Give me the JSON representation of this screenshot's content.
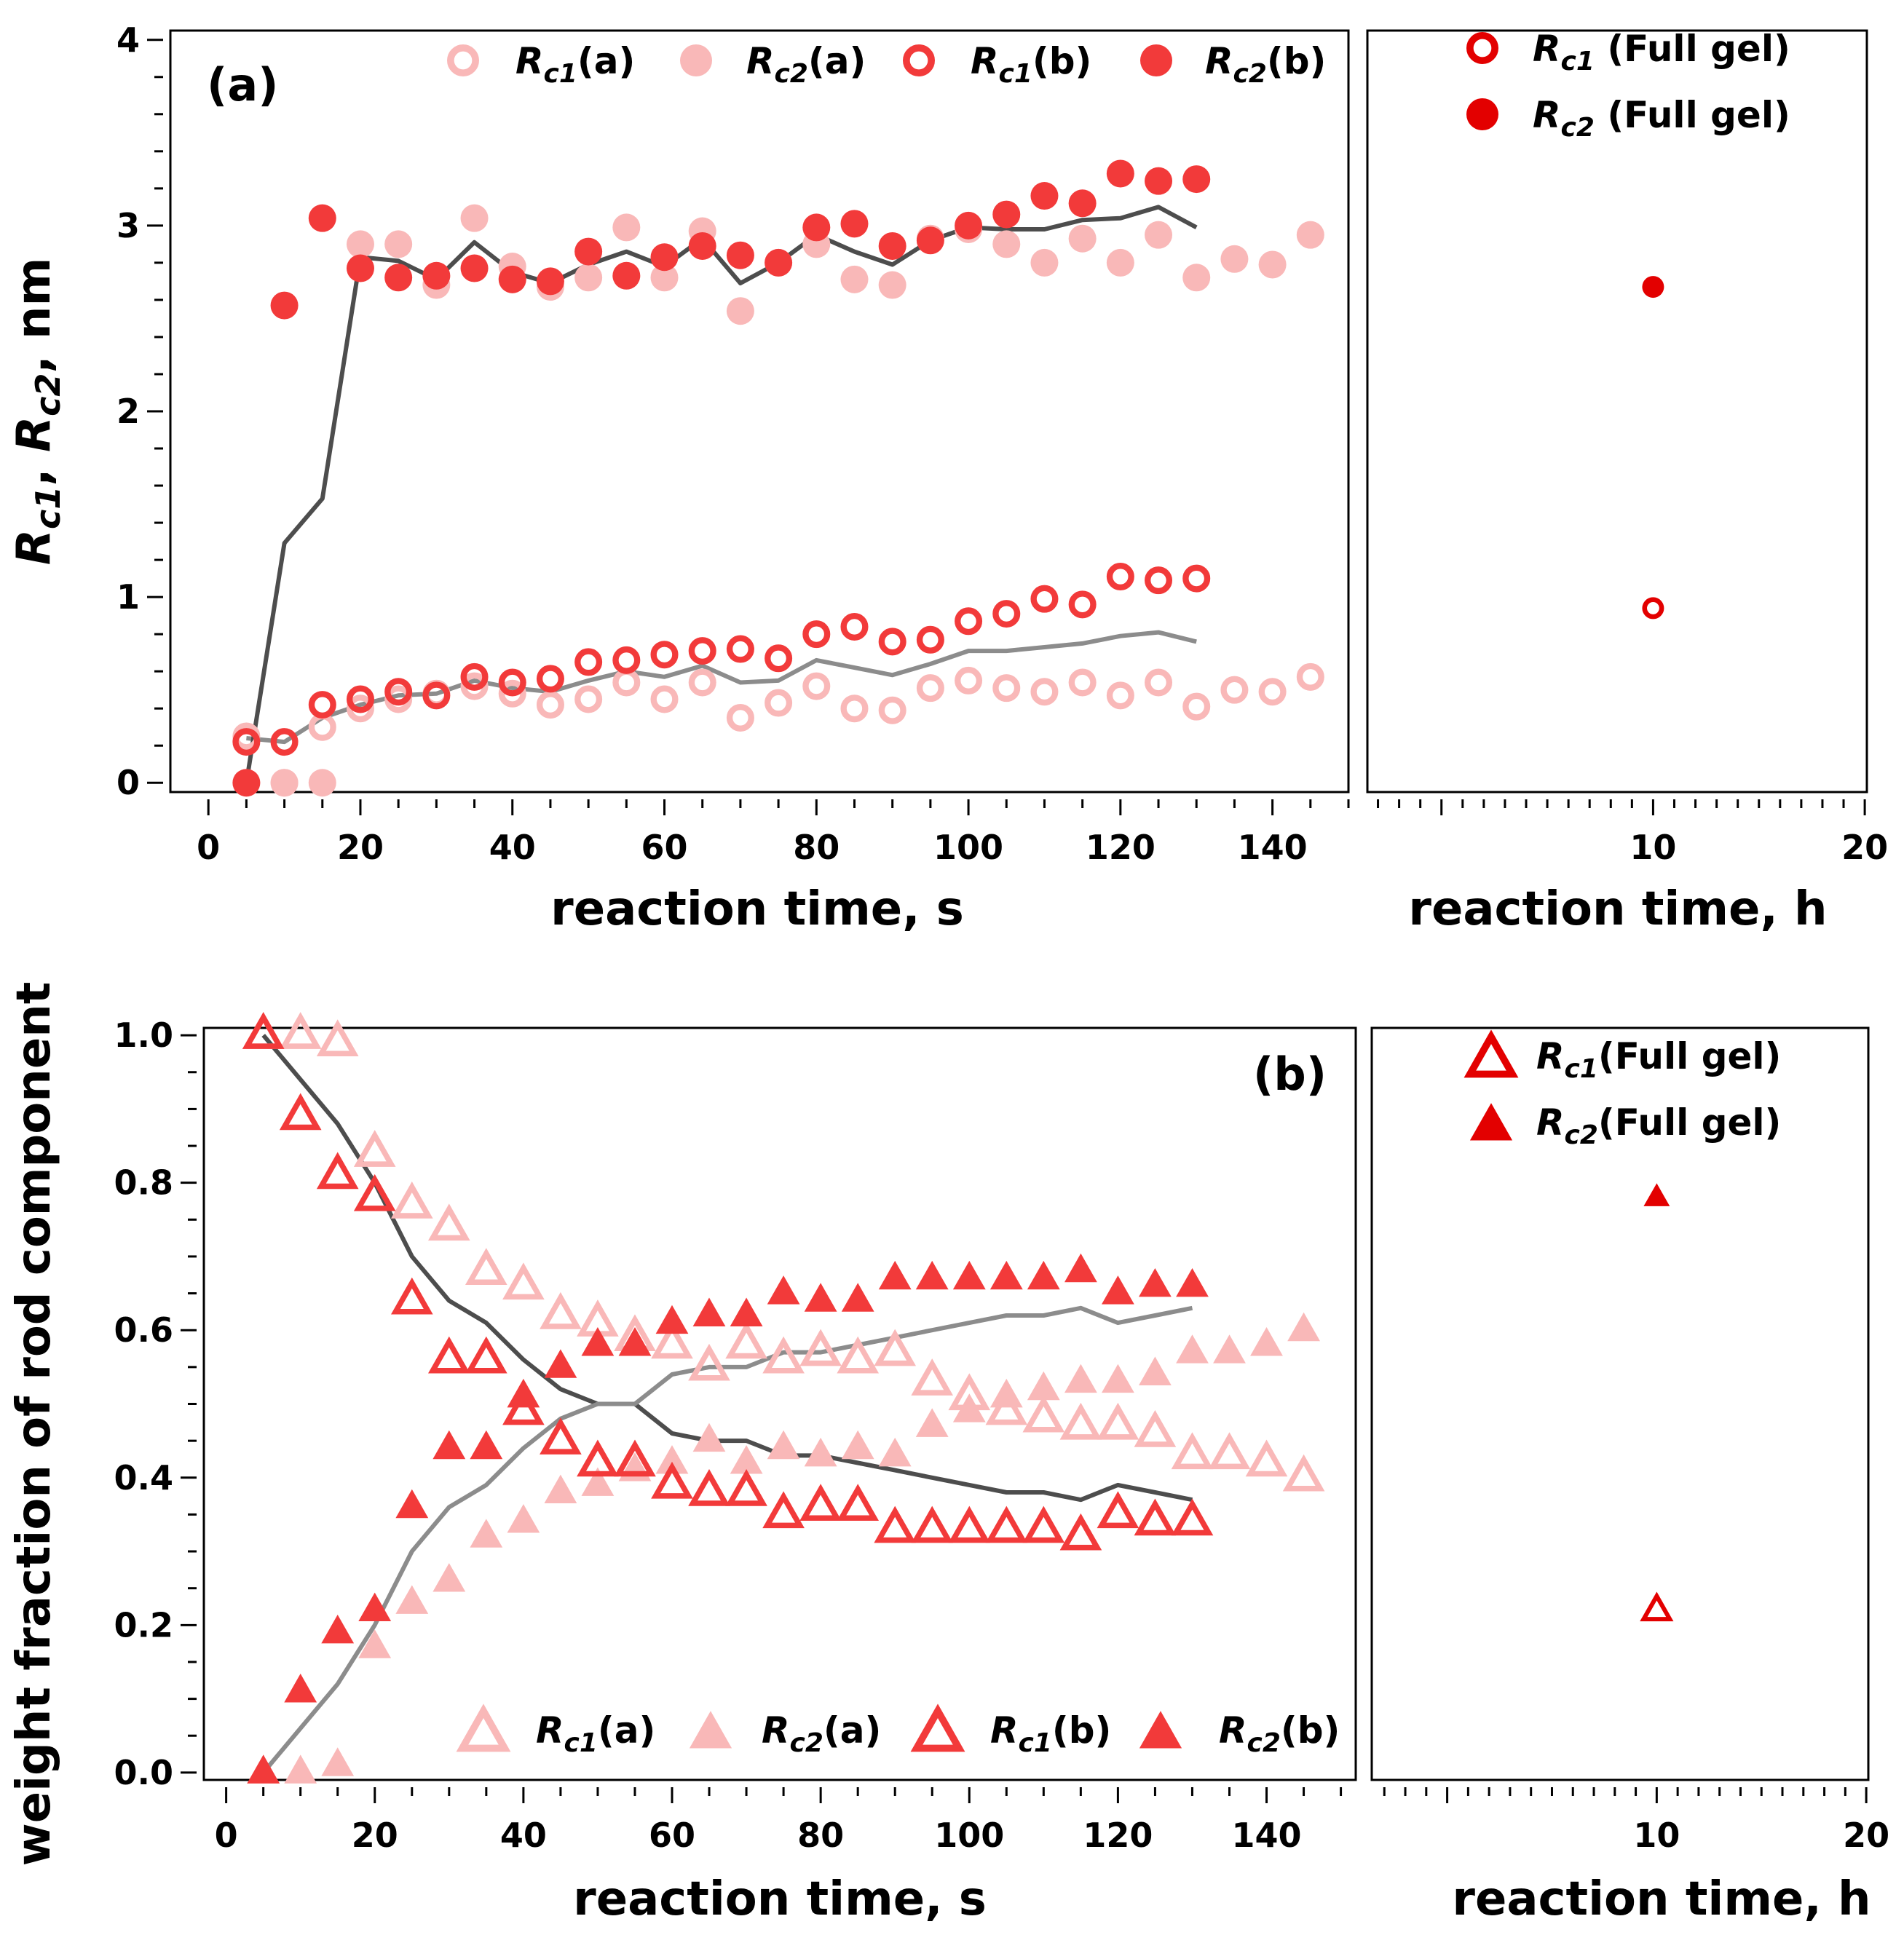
{
  "colors": {
    "light": "#f9b8b8",
    "dark": "#f23a3a",
    "full": "#e30000",
    "line_dark": "#4d4d4d",
    "line_light": "#8c8c8c"
  },
  "chart_data": [
    {
      "id": "a-main",
      "type": "scatter",
      "panel_label": "(a)",
      "xlabel": "reaction time, s",
      "ylabel": "R_c1, R_c2, nm",
      "xlim": [
        -5,
        150
      ],
      "ylim": [
        -0.05,
        4.05
      ],
      "xticks": [
        "0",
        "20",
        "40",
        "60",
        "80",
        "100",
        "120",
        "140"
      ],
      "yticks": [
        "0",
        "1",
        "2",
        "3",
        "4"
      ],
      "legend": [
        {
          "sub": "c1",
          "suffix": "(a)",
          "style": "light-open-circle"
        },
        {
          "sub": "c2",
          "suffix": "(a)",
          "style": "light-filled-circle"
        },
        {
          "sub": "c1",
          "suffix": "(b)",
          "style": "dark-open-circle"
        },
        {
          "sub": "c2",
          "suffix": "(b)",
          "style": "dark-filled-circle"
        }
      ],
      "series": [
        {
          "name": "Rc1(a)",
          "marker": "circle",
          "filled": false,
          "color": "light",
          "x": [
            5,
            10,
            15,
            20,
            25,
            30,
            35,
            40,
            45,
            50,
            55,
            60,
            65,
            70,
            75,
            80,
            85,
            90,
            95,
            100,
            105,
            110,
            115,
            120,
            125,
            130,
            135,
            140,
            145
          ],
          "y": [
            0.25,
            0.0,
            0.3,
            0.4,
            0.45,
            0.48,
            0.52,
            0.48,
            0.42,
            0.45,
            0.54,
            0.45,
            0.54,
            0.35,
            0.43,
            0.52,
            0.4,
            0.39,
            0.51,
            0.55,
            0.51,
            0.49,
            0.54,
            0.47,
            0.54,
            0.41,
            0.5,
            0.49,
            0.57
          ]
        },
        {
          "name": "Rc2(a)",
          "marker": "circle",
          "filled": true,
          "color": "light",
          "x": [
            5,
            10,
            15,
            20,
            25,
            30,
            35,
            40,
            45,
            50,
            55,
            60,
            65,
            70,
            75,
            80,
            85,
            90,
            95,
            100,
            105,
            110,
            115,
            120,
            125,
            130,
            135,
            140,
            145
          ],
          "y": [
            0.0,
            0.0,
            0.0,
            2.9,
            2.9,
            2.68,
            3.04,
            2.78,
            2.67,
            2.72,
            2.99,
            2.72,
            2.97,
            2.54,
            2.8,
            2.9,
            2.71,
            2.68,
            2.93,
            2.98,
            2.9,
            2.8,
            2.93,
            2.8,
            2.95,
            2.72,
            2.82,
            2.79,
            2.95
          ]
        },
        {
          "name": "Rc1(b)",
          "marker": "circle",
          "filled": false,
          "color": "dark",
          "x": [
            5,
            10,
            15,
            20,
            25,
            30,
            35,
            40,
            45,
            50,
            55,
            60,
            65,
            70,
            75,
            80,
            85,
            90,
            95,
            100,
            105,
            110,
            115,
            120,
            125,
            130
          ],
          "y": [
            0.22,
            0.22,
            0.42,
            0.45,
            0.49,
            0.47,
            0.57,
            0.54,
            0.56,
            0.65,
            0.66,
            0.69,
            0.71,
            0.72,
            0.67,
            0.8,
            0.84,
            0.76,
            0.77,
            0.87,
            0.91,
            0.99,
            0.96,
            1.11,
            1.09,
            1.1
          ]
        },
        {
          "name": "Rc2(b)",
          "marker": "circle",
          "filled": true,
          "color": "dark",
          "x": [
            5,
            10,
            15,
            20,
            25,
            30,
            35,
            40,
            45,
            50,
            55,
            60,
            65,
            70,
            75,
            80,
            85,
            90,
            95,
            100,
            105,
            110,
            115,
            120,
            125,
            130
          ],
          "y": [
            0.0,
            2.57,
            3.04,
            2.77,
            2.72,
            2.73,
            2.77,
            2.71,
            2.7,
            2.86,
            2.73,
            2.83,
            2.89,
            2.84,
            2.8,
            2.99,
            3.01,
            2.89,
            2.92,
            3.0,
            3.06,
            3.16,
            3.12,
            3.28,
            3.24,
            3.25
          ]
        },
        {
          "name": "Rc1 avg",
          "type": "line",
          "color": "line_light",
          "x": [
            5,
            10,
            15,
            20,
            25,
            30,
            35,
            40,
            45,
            50,
            55,
            60,
            65,
            70,
            75,
            80,
            85,
            90,
            95,
            100,
            105,
            110,
            115,
            120,
            125,
            130
          ],
          "y": [
            0.24,
            0.22,
            0.35,
            0.42,
            0.47,
            0.48,
            0.55,
            0.51,
            0.49,
            0.55,
            0.6,
            0.57,
            0.63,
            0.54,
            0.55,
            0.66,
            0.62,
            0.58,
            0.64,
            0.71,
            0.71,
            0.73,
            0.75,
            0.79,
            0.81,
            0.76
          ]
        },
        {
          "name": "Rc2 avg",
          "type": "line",
          "color": "line_dark",
          "x": [
            5,
            10,
            15,
            20,
            25,
            30,
            35,
            40,
            45,
            50,
            55,
            60,
            65,
            70,
            75,
            80,
            85,
            90,
            95,
            100,
            105,
            110,
            115,
            120,
            125,
            130
          ],
          "y": [
            0.0,
            1.29,
            1.53,
            2.83,
            2.81,
            2.71,
            2.91,
            2.75,
            2.69,
            2.79,
            2.86,
            2.78,
            2.93,
            2.69,
            2.8,
            2.95,
            2.86,
            2.79,
            2.92,
            2.99,
            2.98,
            2.98,
            3.03,
            3.04,
            3.1,
            2.99
          ]
        }
      ]
    },
    {
      "id": "a-side",
      "type": "scatter",
      "xlabel": "reaction time, h",
      "xlim": [
        -3.5,
        20.1
      ],
      "ylim": [
        -0.05,
        4.05
      ],
      "xticks": [
        "10",
        "20"
      ],
      "legend": [
        {
          "sub": "c1",
          "suffix": " (Full gel)",
          "style": "full-open-circle"
        },
        {
          "sub": "c2",
          "suffix": " (Full gel)",
          "style": "full-filled-circle"
        }
      ],
      "series": [
        {
          "name": "Rc1 (Full gel)",
          "marker": "circle",
          "filled": false,
          "color": "full",
          "x": [
            10
          ],
          "y": [
            0.94
          ]
        },
        {
          "name": "Rc2 (Full gel)",
          "marker": "circle",
          "filled": true,
          "color": "full",
          "x": [
            10
          ],
          "y": [
            2.67
          ]
        }
      ]
    },
    {
      "id": "b-main",
      "type": "scatter",
      "panel_label": "(b)",
      "xlabel": "reaction time, s",
      "ylabel": "weight fraction of rod component",
      "xlim": [
        -3,
        152
      ],
      "ylim": [
        -0.01,
        1.01
      ],
      "xticks": [
        "0",
        "20",
        "40",
        "60",
        "80",
        "100",
        "120",
        "140"
      ],
      "yticks": [
        "0.0",
        "0.2",
        "0.4",
        "0.6",
        "0.8",
        "1.0"
      ],
      "legend": [
        {
          "sub": "c1",
          "suffix": "(a)",
          "style": "light-open-triangle"
        },
        {
          "sub": "c2",
          "suffix": "(a)",
          "style": "light-filled-triangle"
        },
        {
          "sub": "c1",
          "suffix": "(b)",
          "style": "dark-open-triangle"
        },
        {
          "sub": "c2",
          "suffix": "(b)",
          "style": "dark-filled-triangle"
        }
      ],
      "series": [
        {
          "name": "Rc1(a)",
          "marker": "triangle",
          "filled": false,
          "color": "light",
          "x": [
            5,
            10,
            15,
            20,
            25,
            30,
            35,
            40,
            45,
            50,
            55,
            60,
            65,
            70,
            75,
            80,
            85,
            90,
            95,
            100,
            105,
            110,
            115,
            120,
            125,
            130,
            135,
            140,
            145
          ],
          "y": [
            1.0,
            1.0,
            0.99,
            0.84,
            0.77,
            0.74,
            0.68,
            0.66,
            0.62,
            0.61,
            0.59,
            0.58,
            0.55,
            0.58,
            0.56,
            0.57,
            0.56,
            0.57,
            0.53,
            0.51,
            0.49,
            0.48,
            0.47,
            0.47,
            0.46,
            0.43,
            0.43,
            0.42,
            0.4
          ]
        },
        {
          "name": "Rc2(a)",
          "marker": "triangle",
          "filled": true,
          "color": "light",
          "x": [
            5,
            10,
            15,
            20,
            25,
            30,
            35,
            40,
            45,
            50,
            55,
            60,
            65,
            70,
            75,
            80,
            85,
            90,
            95,
            100,
            105,
            110,
            115,
            120,
            125,
            130,
            135,
            140,
            145
          ],
          "y": [
            0.0,
            0.0,
            0.01,
            0.17,
            0.23,
            0.26,
            0.32,
            0.34,
            0.38,
            0.39,
            0.41,
            0.42,
            0.45,
            0.42,
            0.44,
            0.43,
            0.44,
            0.43,
            0.47,
            0.49,
            0.51,
            0.52,
            0.53,
            0.53,
            0.54,
            0.57,
            0.57,
            0.58,
            0.6
          ]
        },
        {
          "name": "Rc1(b)",
          "marker": "triangle",
          "filled": false,
          "color": "dark",
          "x": [
            5,
            10,
            15,
            20,
            25,
            30,
            35,
            40,
            45,
            50,
            55,
            60,
            65,
            70,
            75,
            80,
            85,
            90,
            95,
            100,
            105,
            110,
            115,
            120,
            125,
            130
          ],
          "y": [
            1.0,
            0.89,
            0.81,
            0.78,
            0.64,
            0.56,
            0.56,
            0.49,
            0.45,
            0.42,
            0.42,
            0.39,
            0.38,
            0.38,
            0.35,
            0.36,
            0.36,
            0.33,
            0.33,
            0.33,
            0.33,
            0.33,
            0.32,
            0.35,
            0.34,
            0.34
          ]
        },
        {
          "name": "Rc2(b)",
          "marker": "triangle",
          "filled": true,
          "color": "dark",
          "x": [
            5,
            10,
            15,
            20,
            25,
            30,
            35,
            40,
            45,
            50,
            55,
            60,
            65,
            70,
            75,
            80,
            85,
            90,
            95,
            100,
            105,
            110,
            115,
            120,
            125,
            130
          ],
          "y": [
            0.0,
            0.11,
            0.19,
            0.22,
            0.36,
            0.44,
            0.44,
            0.51,
            0.55,
            0.58,
            0.58,
            0.61,
            0.62,
            0.62,
            0.65,
            0.64,
            0.64,
            0.67,
            0.67,
            0.67,
            0.67,
            0.67,
            0.68,
            0.65,
            0.66,
            0.66
          ]
        },
        {
          "name": "Rc1 avg",
          "type": "line",
          "color": "line_dark",
          "x": [
            5,
            10,
            15,
            20,
            25,
            30,
            35,
            40,
            45,
            50,
            55,
            60,
            65,
            70,
            75,
            80,
            85,
            90,
            95,
            100,
            105,
            110,
            115,
            120,
            125,
            130
          ],
          "y": [
            1.0,
            0.94,
            0.88,
            0.8,
            0.7,
            0.64,
            0.61,
            0.56,
            0.52,
            0.5,
            0.5,
            0.46,
            0.45,
            0.45,
            0.43,
            0.43,
            0.42,
            0.41,
            0.4,
            0.39,
            0.38,
            0.38,
            0.37,
            0.39,
            0.38,
            0.37
          ]
        },
        {
          "name": "Rc2 avg",
          "type": "line",
          "color": "line_light",
          "x": [
            5,
            10,
            15,
            20,
            25,
            30,
            35,
            40,
            45,
            50,
            55,
            60,
            65,
            70,
            75,
            80,
            85,
            90,
            95,
            100,
            105,
            110,
            115,
            120,
            125,
            130
          ],
          "y": [
            0.0,
            0.06,
            0.12,
            0.2,
            0.3,
            0.36,
            0.39,
            0.44,
            0.48,
            0.5,
            0.5,
            0.54,
            0.55,
            0.55,
            0.57,
            0.57,
            0.58,
            0.59,
            0.6,
            0.61,
            0.62,
            0.62,
            0.63,
            0.61,
            0.62,
            0.63
          ]
        }
      ]
    },
    {
      "id": "b-side",
      "type": "scatter",
      "xlabel": "reaction time, h",
      "xlim": [
        -3.6,
        20.1
      ],
      "ylim": [
        -0.01,
        1.01
      ],
      "xticks": [
        "10",
        "20"
      ],
      "legend": [
        {
          "sub": "c1",
          "suffix": "(Full gel)",
          "style": "full-open-triangle"
        },
        {
          "sub": "c2",
          "suffix": "(Full gel)",
          "style": "full-filled-triangle"
        }
      ],
      "series": [
        {
          "name": "Rc1 (Full gel)",
          "marker": "triangle",
          "filled": false,
          "color": "full",
          "x": [
            10
          ],
          "y": [
            0.22
          ]
        },
        {
          "name": "Rc2 (Full gel)",
          "marker": "triangle",
          "filled": true,
          "color": "full",
          "x": [
            10
          ],
          "y": [
            0.78
          ]
        }
      ]
    }
  ]
}
